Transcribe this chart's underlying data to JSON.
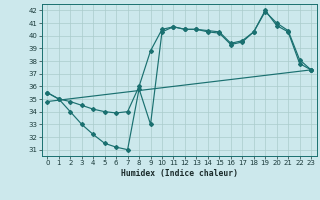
{
  "xlabel": "Humidex (Indice chaleur)",
  "background_color": "#cce8ec",
  "grid_color": "#aacccc",
  "line_color": "#1a7070",
  "xlim": [
    -0.5,
    23.5
  ],
  "ylim": [
    30.5,
    42.5
  ],
  "yticks": [
    31,
    32,
    33,
    34,
    35,
    36,
    37,
    38,
    39,
    40,
    41,
    42
  ],
  "xticks": [
    0,
    1,
    2,
    3,
    4,
    5,
    6,
    7,
    8,
    9,
    10,
    11,
    12,
    13,
    14,
    15,
    16,
    17,
    18,
    19,
    20,
    21,
    22,
    23
  ],
  "line1_x": [
    0,
    1,
    2,
    3,
    4,
    5,
    6,
    7,
    8,
    9,
    10,
    11,
    12,
    13,
    14,
    15,
    16,
    17,
    18,
    19,
    20,
    21,
    22,
    23
  ],
  "line1_y": [
    35.5,
    35.0,
    34.0,
    33.0,
    32.2,
    31.5,
    31.2,
    31.0,
    35.8,
    33.0,
    40.3,
    40.7,
    40.5,
    40.5,
    40.3,
    40.2,
    39.3,
    39.5,
    40.3,
    42.0,
    40.8,
    40.3,
    37.8,
    37.3
  ],
  "line2_x": [
    0,
    1,
    2,
    3,
    4,
    5,
    6,
    7,
    8,
    9,
    10,
    11,
    12,
    13,
    14,
    15,
    16,
    17,
    18,
    19,
    20,
    21,
    22,
    23
  ],
  "line2_y": [
    35.5,
    35.0,
    34.8,
    34.5,
    34.2,
    34.0,
    33.9,
    34.0,
    36.0,
    38.8,
    40.5,
    40.7,
    40.5,
    40.5,
    40.4,
    40.3,
    39.4,
    39.6,
    40.3,
    41.9,
    41.0,
    40.4,
    38.1,
    37.3
  ],
  "line3_x": [
    0,
    23
  ],
  "line3_y": [
    34.8,
    37.3
  ]
}
